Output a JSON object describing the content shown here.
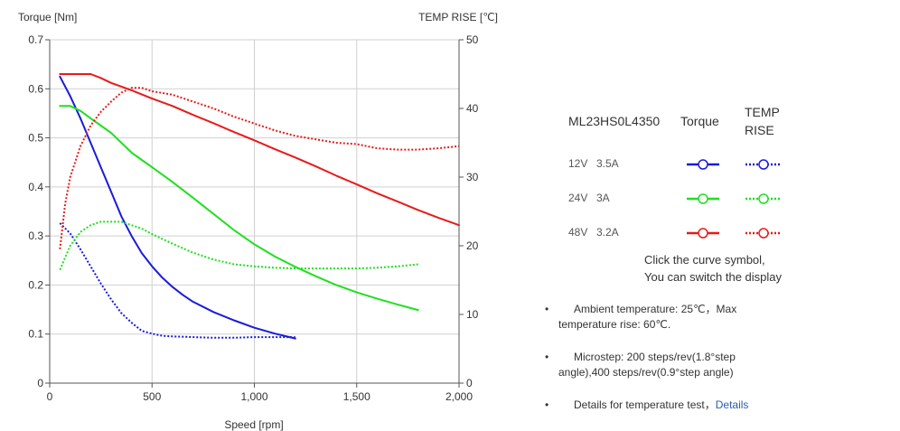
{
  "chart_data": {
    "type": "line",
    "xlabel": "Speed [rpm]",
    "ylabel_left": "Torque  [Nm]",
    "ylabel_right": "TEMP RISE [℃]",
    "xlim": [
      0,
      2000
    ],
    "xticks": [
      "0",
      "500",
      "1,000",
      "1,500",
      "2,000"
    ],
    "xtick_values": [
      0,
      500,
      1000,
      1500,
      2000
    ],
    "ylim_left": [
      0,
      0.7
    ],
    "yticks_left": [
      "0",
      "0.1",
      "0.2",
      "0.3",
      "0.4",
      "0.5",
      "0.6",
      "0.7"
    ],
    "ytick_left_values": [
      0,
      0.1,
      0.2,
      0.3,
      0.4,
      0.5,
      0.6,
      0.7
    ],
    "ylim_right": [
      0,
      50
    ],
    "yticks_right": [
      "0",
      "10",
      "20",
      "30",
      "40",
      "50"
    ],
    "ytick_right_values": [
      0,
      10,
      20,
      30,
      40,
      50
    ],
    "grid": true,
    "series": [
      {
        "name": "12V 3.5A Torque",
        "axis": "left",
        "style": "solid",
        "color": "#1a1adc",
        "x": [
          50,
          100,
          150,
          200,
          250,
          300,
          350,
          400,
          450,
          500,
          550,
          600,
          650,
          700,
          800,
          900,
          1000,
          1100,
          1200
        ],
        "y": [
          0.625,
          0.585,
          0.54,
          0.49,
          0.44,
          0.39,
          0.34,
          0.3,
          0.265,
          0.238,
          0.215,
          0.196,
          0.18,
          0.166,
          0.145,
          0.128,
          0.113,
          0.101,
          0.091
        ]
      },
      {
        "name": "12V 3.5A TEMP RISE",
        "axis": "right",
        "style": "dotted",
        "color": "#1a1adc",
        "x": [
          50,
          100,
          150,
          200,
          250,
          300,
          350,
          400,
          450,
          500,
          550,
          600,
          700,
          800,
          900,
          1000,
          1100,
          1200
        ],
        "y": [
          23.3,
          21.8,
          19.5,
          17,
          14.5,
          12.2,
          10.2,
          8.8,
          7.6,
          7.2,
          6.9,
          6.8,
          6.7,
          6.6,
          6.6,
          6.7,
          6.7,
          6.7
        ]
      },
      {
        "name": "24V 3A Torque",
        "axis": "left",
        "style": "solid",
        "color": "#1fe01f",
        "x": [
          50,
          100,
          150,
          200,
          250,
          300,
          350,
          400,
          450,
          500,
          600,
          700,
          800,
          900,
          1000,
          1100,
          1200,
          1300,
          1400,
          1500,
          1600,
          1700,
          1800
        ],
        "y": [
          0.565,
          0.565,
          0.555,
          0.54,
          0.525,
          0.51,
          0.49,
          0.47,
          0.455,
          0.44,
          0.41,
          0.378,
          0.345,
          0.312,
          0.283,
          0.258,
          0.237,
          0.218,
          0.2,
          0.185,
          0.172,
          0.16,
          0.149
        ]
      },
      {
        "name": "24V 3A TEMP RISE",
        "axis": "right",
        "style": "dotted",
        "color": "#1fe01f",
        "x": [
          50,
          100,
          150,
          200,
          250,
          300,
          350,
          400,
          450,
          500,
          600,
          700,
          800,
          900,
          1000,
          1100,
          1200,
          1300,
          1400,
          1500,
          1600,
          1700,
          1800
        ],
        "y": [
          16.5,
          20,
          22,
          23,
          23.5,
          23.5,
          23.5,
          23,
          22.5,
          21.7,
          20.3,
          19,
          18,
          17.3,
          17,
          16.8,
          16.7,
          16.7,
          16.7,
          16.7,
          16.8,
          17,
          17.3
        ]
      },
      {
        "name": "48V 3.2A Torque",
        "axis": "left",
        "style": "solid",
        "color": "#e81a1a",
        "x": [
          50,
          100,
          150,
          200,
          250,
          300,
          400,
          500,
          600,
          700,
          800,
          900,
          1000,
          1100,
          1200,
          1300,
          1400,
          1500,
          1600,
          1700,
          1800,
          1900,
          2000
        ],
        "y": [
          0.63,
          0.63,
          0.63,
          0.63,
          0.622,
          0.612,
          0.597,
          0.58,
          0.565,
          0.547,
          0.53,
          0.512,
          0.495,
          0.477,
          0.46,
          0.442,
          0.423,
          0.405,
          0.387,
          0.37,
          0.353,
          0.337,
          0.322
        ]
      },
      {
        "name": "48V 3.2A TEMP RISE",
        "axis": "right",
        "style": "dotted",
        "color": "#e81a1a",
        "x": [
          50,
          75,
          100,
          150,
          200,
          250,
          300,
          350,
          400,
          450,
          500,
          600,
          700,
          800,
          900,
          1000,
          1100,
          1200,
          1300,
          1400,
          1500,
          1600,
          1700,
          1800,
          1900,
          2000
        ],
        "y": [
          19.5,
          26,
          30,
          34.5,
          37.5,
          39.5,
          41,
          42.3,
          43,
          43,
          42.5,
          42,
          41,
          40,
          38.8,
          37.8,
          36.8,
          36,
          35.5,
          35,
          34.8,
          34.2,
          34,
          34,
          34.2,
          34.5
        ]
      }
    ]
  },
  "legend": {
    "model": "ML23HS0L4350",
    "torque_head": "Torque",
    "temp_head_1": "TEMP",
    "temp_head_2": "RISE",
    "rows": [
      {
        "voltage": "12V",
        "current": "3.5A",
        "color": "#1a1adc"
      },
      {
        "voltage": "24V",
        "current": "3A",
        "color": "#1fe01f"
      },
      {
        "voltage": "48V",
        "current": "3.2A",
        "color": "#e81a1a"
      }
    ]
  },
  "hint": {
    "line1": "Click the curve symbol,",
    "line2": "You can switch the display"
  },
  "notes": {
    "ambient": "Ambient temperature: 25℃，Max temperature rise: 60℃.",
    "microstep": "Microstep: 200 steps/rev(1.8°step angle),400 steps/rev(0.9°step angle)",
    "details_prefix": "Details for temperature test，",
    "details_link": "Details"
  }
}
